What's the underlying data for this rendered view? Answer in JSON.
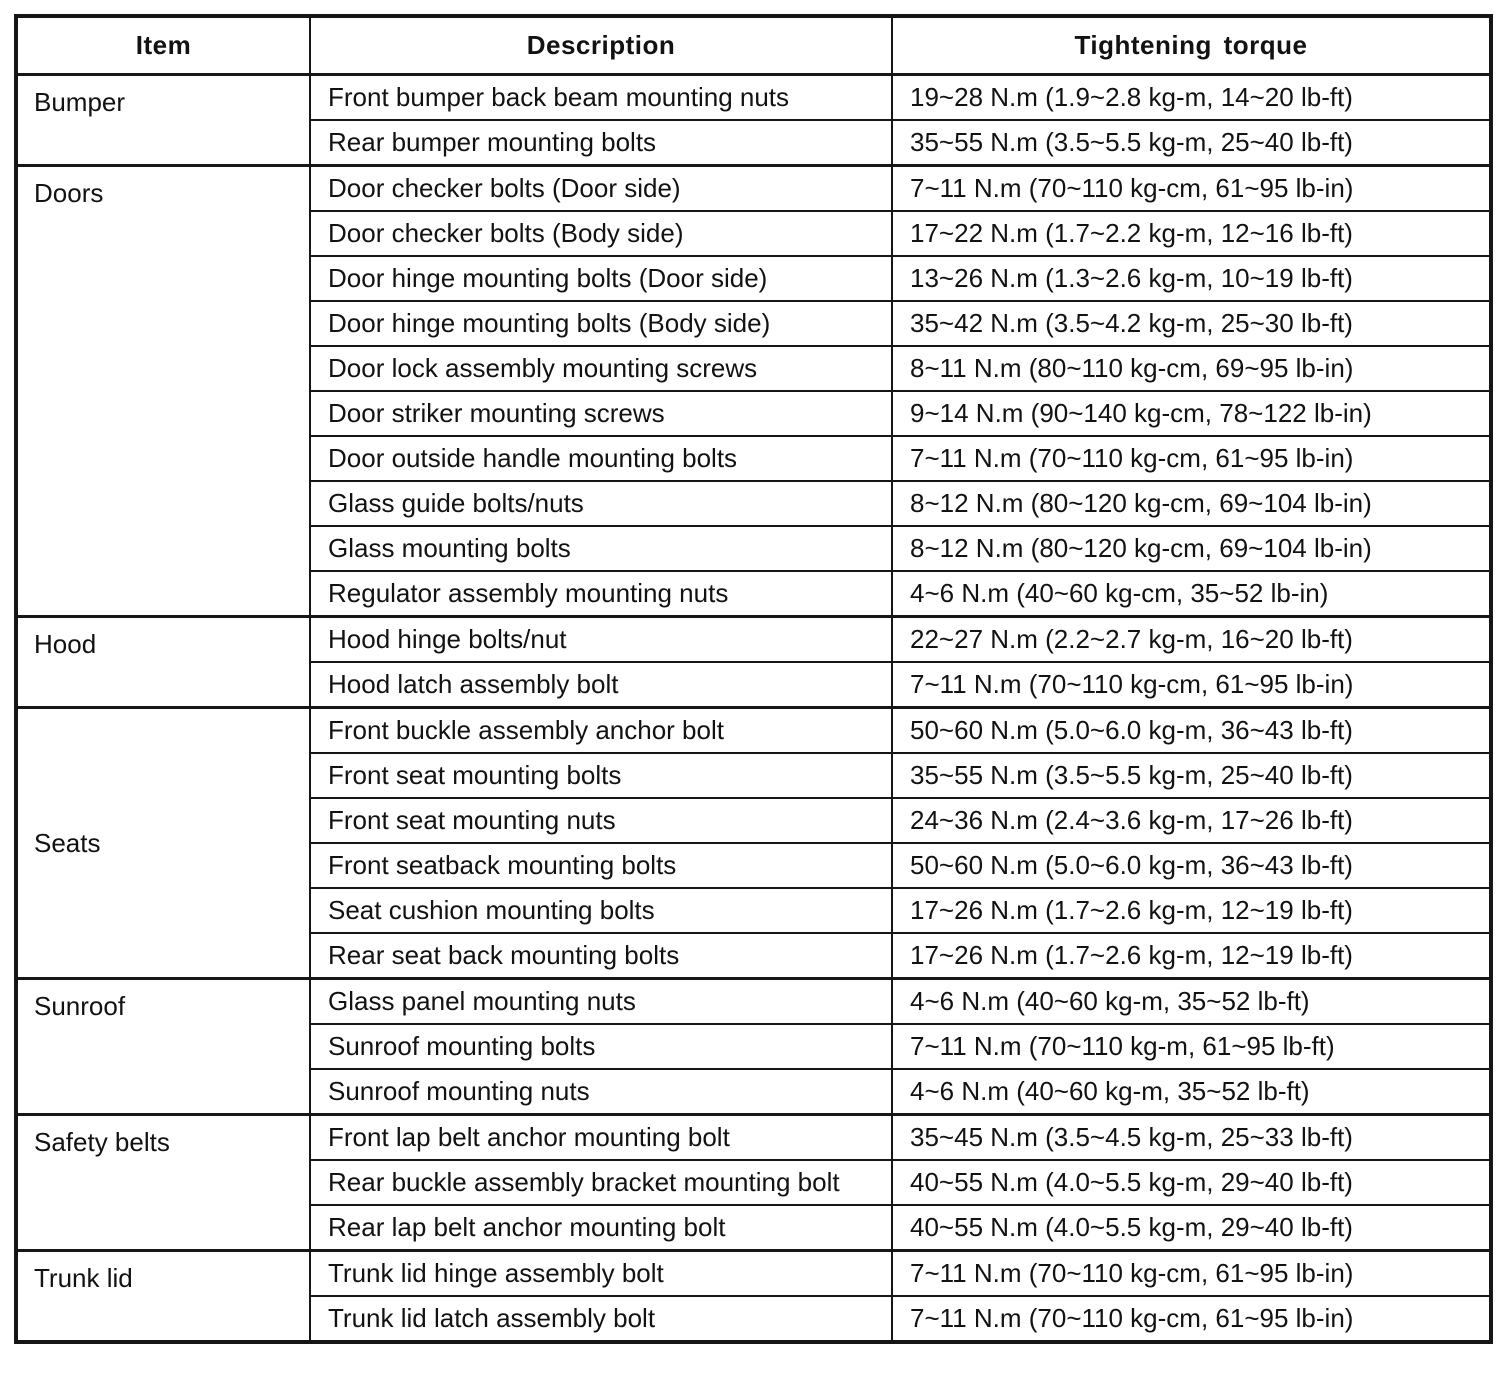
{
  "table": {
    "headers": [
      "Item",
      "Description",
      "Tightening torque"
    ],
    "colors": {
      "background": "#ffffff",
      "border": "#161616",
      "text": "#121212"
    },
    "sections": [
      {
        "item": "Bumper",
        "label_valign": "top",
        "rows": [
          {
            "description": "Front bumper back beam mounting nuts",
            "torque": "19~28 N.m (1.9~2.8 kg-m, 14~20 lb-ft)"
          },
          {
            "description": "Rear bumper mounting bolts",
            "torque": "35~55 N.m (3.5~5.5 kg-m, 25~40 lb-ft)"
          }
        ]
      },
      {
        "item": "Doors",
        "label_valign": "top",
        "rows": [
          {
            "description": "Door checker bolts (Door side)",
            "torque": "7~11 N.m (70~110 kg-cm, 61~95 lb-in)"
          },
          {
            "description": "Door checker bolts (Body side)",
            "torque": "17~22 N.m (1.7~2.2 kg-m, 12~16 lb-ft)"
          },
          {
            "description": "Door hinge mounting bolts (Door side)",
            "torque": "13~26 N.m (1.3~2.6 kg-m, 10~19 lb-ft)"
          },
          {
            "description": "Door hinge mounting bolts (Body side)",
            "torque": "35~42 N.m (3.5~4.2 kg-m, 25~30 lb-ft)"
          },
          {
            "description": "Door lock assembly mounting screws",
            "torque": "8~11 N.m (80~110 kg-cm, 69~95 lb-in)"
          },
          {
            "description": "Door striker mounting screws",
            "torque": "9~14 N.m (90~140 kg-cm, 78~122 lb-in)"
          },
          {
            "description": "Door outside handle mounting bolts",
            "torque": "7~11 N.m (70~110 kg-cm, 61~95 lb-in)"
          },
          {
            "description": "Glass guide bolts/nuts",
            "torque": "8~12 N.m (80~120 kg-cm, 69~104 lb-in)"
          },
          {
            "description": "Glass mounting bolts",
            "torque": "8~12 N.m (80~120 kg-cm, 69~104 lb-in)"
          },
          {
            "description": "Regulator assembly mounting nuts",
            "torque": "4~6 N.m (40~60 kg-cm, 35~52 lb-in)"
          }
        ]
      },
      {
        "item": "Hood",
        "label_valign": "top",
        "rows": [
          {
            "description": "Hood hinge bolts/nut",
            "torque": "22~27 N.m (2.2~2.7 kg-m, 16~20 lb-ft)"
          },
          {
            "description": "Hood latch assembly bolt",
            "torque": "7~11 N.m (70~110 kg-cm, 61~95 lb-in)"
          }
        ]
      },
      {
        "item": "Seats",
        "label_valign": "middle",
        "rows": [
          {
            "description": "Front buckle assembly anchor bolt",
            "torque": "50~60 N.m (5.0~6.0 kg-m, 36~43 lb-ft)"
          },
          {
            "description": "Front seat mounting bolts",
            "torque": "35~55 N.m (3.5~5.5 kg-m, 25~40 lb-ft)"
          },
          {
            "description": "Front seat mounting nuts",
            "torque": "24~36 N.m (2.4~3.6 kg-m, 17~26 lb-ft)"
          },
          {
            "description": "Front seatback mounting bolts",
            "torque": "50~60 N.m (5.0~6.0 kg-m, 36~43 lb-ft)"
          },
          {
            "description": "Seat cushion mounting bolts",
            "torque": "17~26 N.m (1.7~2.6 kg-m, 12~19 lb-ft)"
          },
          {
            "description": "Rear seat back mounting bolts",
            "torque": "17~26 N.m (1.7~2.6 kg-m, 12~19 lb-ft)"
          }
        ]
      },
      {
        "item": "Sunroof",
        "label_valign": "top",
        "rows": [
          {
            "description": "Glass panel mounting nuts",
            "torque": "4~6 N.m (40~60 kg-m, 35~52 lb-ft)"
          },
          {
            "description": "Sunroof mounting bolts",
            "torque": "7~11 N.m (70~110 kg-m, 61~95 lb-ft)"
          },
          {
            "description": "Sunroof mounting nuts",
            "torque": "4~6 N.m (40~60 kg-m, 35~52 lb-ft)"
          }
        ]
      },
      {
        "item": "Safety belts",
        "label_valign": "top",
        "rows": [
          {
            "description": "Front lap belt anchor mounting bolt",
            "torque": "35~45 N.m (3.5~4.5 kg-m, 25~33 lb-ft)"
          },
          {
            "description": "Rear buckle assembly bracket mounting bolt",
            "torque": "40~55 N.m (4.0~5.5 kg-m, 29~40 lb-ft)"
          },
          {
            "description": "Rear lap belt anchor mounting bolt",
            "torque": "40~55 N.m (4.0~5.5 kg-m, 29~40 lb-ft)"
          }
        ]
      },
      {
        "item": "Trunk lid",
        "label_valign": "top",
        "rows": [
          {
            "description": "Trunk lid hinge assembly bolt",
            "torque": "7~11 N.m (70~110 kg-cm, 61~95 lb-in)"
          },
          {
            "description": "Trunk lid latch assembly bolt",
            "torque": "7~11 N.m (70~110 kg-cm, 61~95 lb-in)"
          }
        ]
      }
    ]
  }
}
